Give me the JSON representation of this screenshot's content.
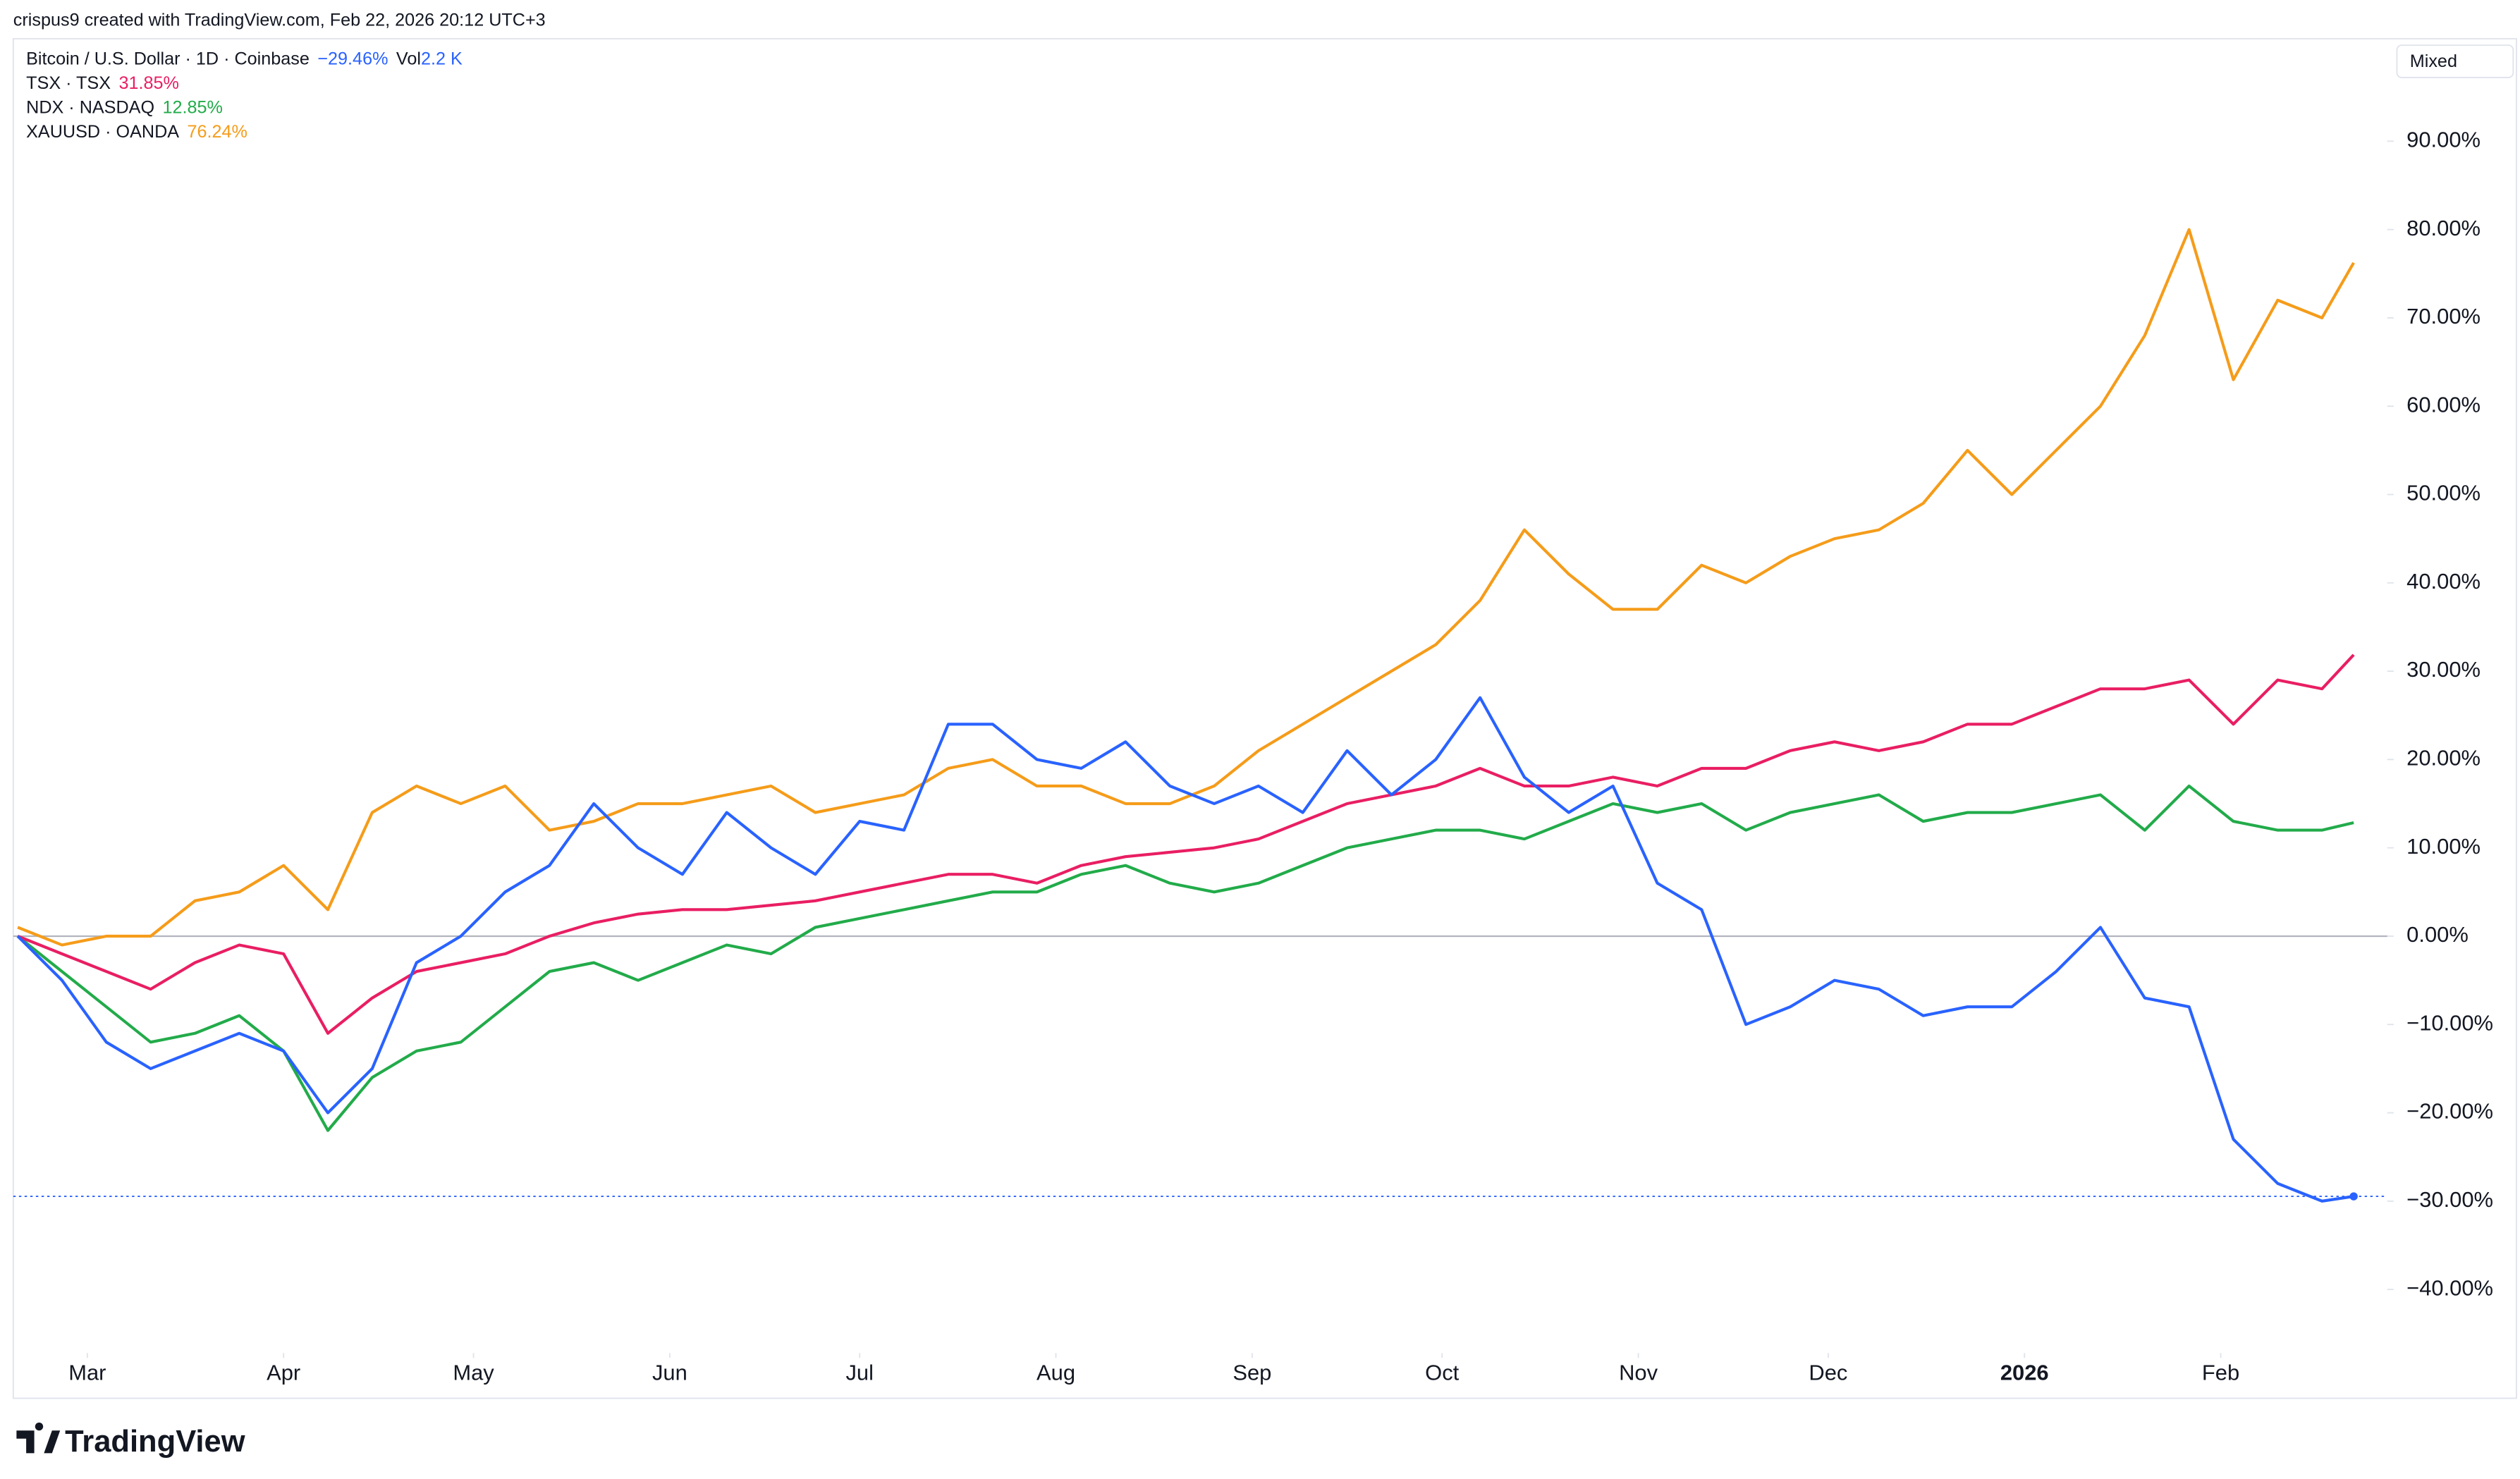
{
  "header": {
    "attribution": "crispus9 created with TradingView.com, Feb 22, 2026 20:12 UTC+3",
    "scale_mode": "Mixed",
    "logo": "TradingView"
  },
  "chart_data": {
    "type": "line",
    "x": [
      0,
      7,
      14,
      21,
      28,
      35,
      42,
      49,
      56,
      63,
      70,
      77,
      84,
      91,
      98,
      105,
      112,
      119,
      126,
      133,
      140,
      147,
      154,
      161,
      168,
      175,
      182,
      189,
      196,
      203,
      210,
      217,
      224,
      231,
      238,
      245,
      252,
      259,
      266,
      273,
      280,
      287,
      294,
      301,
      308,
      315,
      322,
      329,
      336,
      343,
      350,
      357,
      364,
      369
    ],
    "xlim": [
      -0.7,
      374.3
    ],
    "xticks": [
      {
        "value": 11,
        "label": "Mar"
      },
      {
        "value": 42,
        "label": "Apr"
      },
      {
        "value": 72,
        "label": "May"
      },
      {
        "value": 103,
        "label": "Jun"
      },
      {
        "value": 133,
        "label": "Jul"
      },
      {
        "value": 164,
        "label": "Aug"
      },
      {
        "value": 195,
        "label": "Sep"
      },
      {
        "value": 225,
        "label": "Oct"
      },
      {
        "value": 256,
        "label": "Nov"
      },
      {
        "value": 286,
        "label": "Dec"
      },
      {
        "value": 317,
        "label": "2026"
      },
      {
        "value": 348,
        "label": "Feb"
      }
    ],
    "ylim": [
      -47.2,
      101.6
    ],
    "yticks": [
      {
        "value": -40,
        "label": "−40.00%"
      },
      {
        "value": -30,
        "label": "−30.00%"
      },
      {
        "value": -20,
        "label": "−20.00%"
      },
      {
        "value": -10,
        "label": "−10.00%"
      },
      {
        "value": 0,
        "label": "0.00%"
      },
      {
        "value": 10,
        "label": "10.00%"
      },
      {
        "value": 20,
        "label": "20.00%"
      },
      {
        "value": 30,
        "label": "30.00%"
      },
      {
        "value": 40,
        "label": "40.00%"
      },
      {
        "value": 50,
        "label": "50.00%"
      },
      {
        "value": 60,
        "label": "60.00%"
      },
      {
        "value": 70,
        "label": "70.00%"
      },
      {
        "value": 80,
        "label": "80.00%"
      },
      {
        "value": 90,
        "label": "90.00%"
      }
    ],
    "grid": false,
    "series": [
      {
        "name": "Bitcoin / U.S. Dollar · 1D · Coinbase",
        "color": "#2962ff",
        "value_label": "−29.46%",
        "volume_label": "Vol",
        "volume": "2.2 K",
        "values": [
          0,
          -5,
          -12,
          -15,
          -13,
          -11,
          -13,
          -20,
          -15,
          -3,
          0,
          5,
          8,
          15,
          10,
          7,
          14,
          10,
          7,
          13,
          12,
          24,
          24,
          20,
          19,
          22,
          17,
          15,
          17,
          14,
          21,
          16,
          20,
          27,
          18,
          14,
          17,
          6,
          3,
          -10,
          -8,
          -5,
          -6,
          -9,
          -8,
          -8,
          -4,
          1,
          -7,
          -8,
          -23,
          -28,
          -30,
          -29.46
        ]
      },
      {
        "name": "TSX · TSX",
        "color": "#e91e63",
        "value_label": "31.85%",
        "values": [
          0,
          -2,
          -4,
          -6,
          -3,
          -1,
          -2,
          -11,
          -7,
          -4,
          -3,
          -2,
          0,
          1.5,
          2.5,
          3,
          3,
          3.5,
          4,
          5,
          6,
          7,
          7,
          6,
          8,
          9,
          9.5,
          10,
          11,
          13,
          15,
          16,
          17,
          19,
          17,
          17,
          18,
          17,
          19,
          19,
          21,
          22,
          21,
          22,
          24,
          24,
          26,
          28,
          28,
          29,
          24,
          29,
          28,
          31.85
        ]
      },
      {
        "name": "NDX · NASDAQ",
        "color": "#22ab4a",
        "value_label": "12.85%",
        "values": [
          0,
          -4,
          -8,
          -12,
          -11,
          -9,
          -13,
          -22,
          -16,
          -13,
          -12,
          -8,
          -4,
          -3,
          -5,
          -3,
          -1,
          -2,
          1,
          2,
          3,
          4,
          5,
          5,
          7,
          8,
          6,
          5,
          6,
          8,
          10,
          11,
          12,
          12,
          11,
          13,
          15,
          14,
          15,
          12,
          14,
          15,
          16,
          13,
          14,
          14,
          15,
          16,
          12,
          17,
          13,
          12,
          12,
          12.85
        ]
      },
      {
        "name": "XAUUSD · OANDA",
        "color": "#f59c1a",
        "value_label": "76.24%",
        "values": [
          1,
          -1,
          0,
          0,
          4,
          5,
          8,
          3,
          14,
          17,
          15,
          17,
          12,
          13,
          15,
          15,
          16,
          17,
          14,
          15,
          16,
          19,
          20,
          17,
          17,
          15,
          15,
          17,
          21,
          24,
          27,
          30,
          33,
          38,
          46,
          41,
          37,
          37,
          42,
          40,
          43,
          45,
          46,
          49,
          55,
          50,
          55,
          60,
          68,
          80,
          63,
          72,
          70,
          76.24
        ]
      }
    ]
  }
}
